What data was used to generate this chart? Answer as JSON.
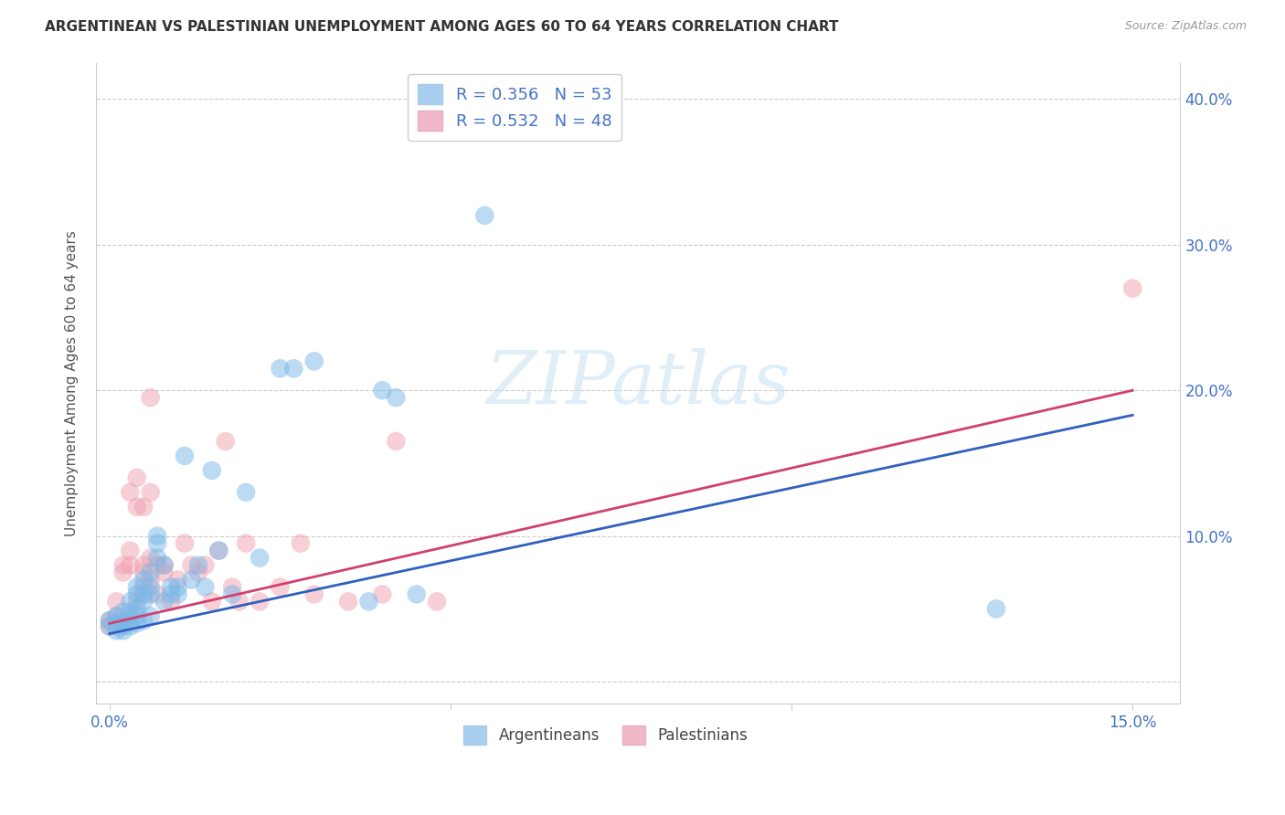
{
  "title": "ARGENTINEAN VS PALESTINIAN UNEMPLOYMENT AMONG AGES 60 TO 64 YEARS CORRELATION CHART",
  "source": "Source: ZipAtlas.com",
  "ylabel": "Unemployment Among Ages 60 to 64 years",
  "xlim": [
    -0.002,
    0.157
  ],
  "ylim": [
    -0.015,
    0.425
  ],
  "watermark_text": "ZIPatlas",
  "blue_scatter_color": "#7ab8e8",
  "pink_scatter_color": "#f0a0b0",
  "blue_line_color": "#3060c0",
  "pink_line_color": "#d04070",
  "blue_legend_color": "#a8cef0",
  "pink_legend_color": "#f0b8c8",
  "legend_text_color": "#4472c4",
  "axis_label_color": "#4472c4",
  "title_color": "#333333",
  "grid_color": "#cccccc",
  "argentina_scatter": [
    [
      0.0,
      0.038
    ],
    [
      0.0,
      0.042
    ],
    [
      0.001,
      0.035
    ],
    [
      0.001,
      0.04
    ],
    [
      0.001,
      0.045
    ],
    [
      0.002,
      0.035
    ],
    [
      0.002,
      0.038
    ],
    [
      0.002,
      0.042
    ],
    [
      0.002,
      0.048
    ],
    [
      0.003,
      0.038
    ],
    [
      0.003,
      0.042
    ],
    [
      0.003,
      0.048
    ],
    [
      0.003,
      0.055
    ],
    [
      0.004,
      0.04
    ],
    [
      0.004,
      0.045
    ],
    [
      0.004,
      0.05
    ],
    [
      0.004,
      0.06
    ],
    [
      0.004,
      0.065
    ],
    [
      0.005,
      0.042
    ],
    [
      0.005,
      0.055
    ],
    [
      0.005,
      0.06
    ],
    [
      0.005,
      0.07
    ],
    [
      0.006,
      0.045
    ],
    [
      0.006,
      0.06
    ],
    [
      0.006,
      0.065
    ],
    [
      0.006,
      0.075
    ],
    [
      0.007,
      0.085
    ],
    [
      0.007,
      0.095
    ],
    [
      0.007,
      0.1
    ],
    [
      0.008,
      0.055
    ],
    [
      0.008,
      0.08
    ],
    [
      0.009,
      0.06
    ],
    [
      0.009,
      0.065
    ],
    [
      0.01,
      0.06
    ],
    [
      0.01,
      0.065
    ],
    [
      0.011,
      0.155
    ],
    [
      0.012,
      0.07
    ],
    [
      0.013,
      0.08
    ],
    [
      0.014,
      0.065
    ],
    [
      0.015,
      0.145
    ],
    [
      0.016,
      0.09
    ],
    [
      0.018,
      0.06
    ],
    [
      0.02,
      0.13
    ],
    [
      0.022,
      0.085
    ],
    [
      0.025,
      0.215
    ],
    [
      0.027,
      0.215
    ],
    [
      0.03,
      0.22
    ],
    [
      0.038,
      0.055
    ],
    [
      0.04,
      0.2
    ],
    [
      0.042,
      0.195
    ],
    [
      0.045,
      0.06
    ],
    [
      0.13,
      0.05
    ],
    [
      0.055,
      0.32
    ]
  ],
  "palestine_scatter": [
    [
      0.0,
      0.038
    ],
    [
      0.0,
      0.042
    ],
    [
      0.001,
      0.038
    ],
    [
      0.001,
      0.045
    ],
    [
      0.001,
      0.055
    ],
    [
      0.002,
      0.04
    ],
    [
      0.002,
      0.075
    ],
    [
      0.002,
      0.08
    ],
    [
      0.003,
      0.045
    ],
    [
      0.003,
      0.08
    ],
    [
      0.003,
      0.09
    ],
    [
      0.003,
      0.13
    ],
    [
      0.004,
      0.055
    ],
    [
      0.004,
      0.12
    ],
    [
      0.004,
      0.14
    ],
    [
      0.005,
      0.065
    ],
    [
      0.005,
      0.075
    ],
    [
      0.005,
      0.08
    ],
    [
      0.005,
      0.12
    ],
    [
      0.006,
      0.07
    ],
    [
      0.006,
      0.085
    ],
    [
      0.006,
      0.13
    ],
    [
      0.006,
      0.195
    ],
    [
      0.007,
      0.06
    ],
    [
      0.007,
      0.08
    ],
    [
      0.008,
      0.075
    ],
    [
      0.008,
      0.08
    ],
    [
      0.009,
      0.055
    ],
    [
      0.01,
      0.07
    ],
    [
      0.011,
      0.095
    ],
    [
      0.012,
      0.08
    ],
    [
      0.013,
      0.075
    ],
    [
      0.014,
      0.08
    ],
    [
      0.015,
      0.055
    ],
    [
      0.016,
      0.09
    ],
    [
      0.017,
      0.165
    ],
    [
      0.018,
      0.065
    ],
    [
      0.019,
      0.055
    ],
    [
      0.02,
      0.095
    ],
    [
      0.022,
      0.055
    ],
    [
      0.025,
      0.065
    ],
    [
      0.028,
      0.095
    ],
    [
      0.03,
      0.06
    ],
    [
      0.035,
      0.055
    ],
    [
      0.04,
      0.06
    ],
    [
      0.042,
      0.165
    ],
    [
      0.048,
      0.055
    ],
    [
      0.15,
      0.27
    ]
  ],
  "blue_line_x": [
    0.0,
    0.15
  ],
  "blue_line_y": [
    0.033,
    0.183
  ],
  "pink_line_x": [
    0.0,
    0.15
  ],
  "pink_line_y": [
    0.04,
    0.2
  ]
}
